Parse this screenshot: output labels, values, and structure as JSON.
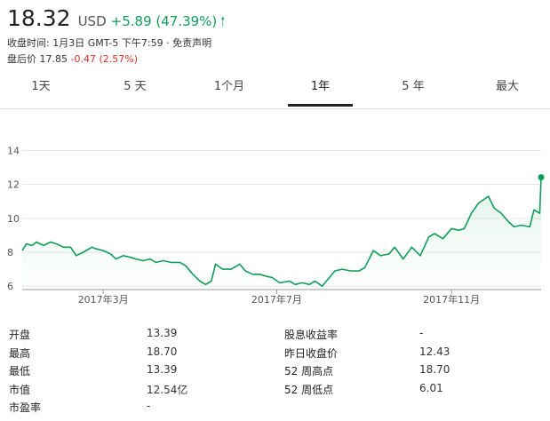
{
  "quote": {
    "price": "18.32",
    "currency": "USD",
    "change": "+5.89 (47.39%)",
    "up_arrow": "🡑",
    "close_info": "收盘时间: 1月3日 GMT-5 下午7:59 · 免责声明",
    "after_hours_prefix": "盘后价 17.85",
    "after_hours_change": "-0.47 (2.57%)",
    "after_hours_color": "#d93025",
    "up_color": "#0f9d58"
  },
  "tabs": [
    "1天",
    "5 天",
    "1个月",
    "1年",
    "5 年",
    "最大"
  ],
  "active_tab": "1年",
  "chart_data": {
    "type": "area",
    "color": "#0f9d58",
    "ylim": [
      5.8,
      14.6
    ],
    "yticks": [
      "14",
      "12",
      "10",
      "8",
      "6"
    ],
    "xticks": [
      "2017年3月",
      "2017年7月",
      "2017年11月"
    ],
    "x_range": [
      "2017-01-03",
      "2018-01-03"
    ],
    "series": [
      {
        "x": [
          "2017-01-03",
          "2017-01-06",
          "2017-01-10",
          "2017-01-13",
          "2017-01-18",
          "2017-01-23",
          "2017-01-27",
          "2017-02-01",
          "2017-02-06",
          "2017-02-10",
          "2017-02-15",
          "2017-02-21",
          "2017-02-24",
          "2017-03-01",
          "2017-03-06",
          "2017-03-10",
          "2017-03-15",
          "2017-03-20",
          "2017-03-24",
          "2017-03-29",
          "2017-04-03",
          "2017-04-07",
          "2017-04-12",
          "2017-04-18",
          "2017-04-24",
          "2017-04-28",
          "2017-05-03",
          "2017-05-08",
          "2017-05-12",
          "2017-05-16",
          "2017-05-19",
          "2017-05-24",
          "2017-05-30",
          "2017-06-05",
          "2017-06-09",
          "2017-06-14",
          "2017-06-19",
          "2017-06-23",
          "2017-06-28",
          "2017-07-03",
          "2017-07-10",
          "2017-07-14",
          "2017-07-19",
          "2017-07-24",
          "2017-07-28",
          "2017-08-02",
          "2017-08-07",
          "2017-08-11",
          "2017-08-16",
          "2017-08-22",
          "2017-08-28",
          "2017-09-01",
          "2017-09-07",
          "2017-09-12",
          "2017-09-18",
          "2017-09-22",
          "2017-09-28",
          "2017-10-04",
          "2017-10-10",
          "2017-10-16",
          "2017-10-20",
          "2017-10-26",
          "2017-11-01",
          "2017-11-06",
          "2017-11-10",
          "2017-11-15",
          "2017-11-20",
          "2017-11-27",
          "2017-12-01",
          "2017-12-06",
          "2017-12-11",
          "2017-12-15",
          "2017-12-20",
          "2017-12-26",
          "2017-12-29",
          "2018-01-02",
          "2018-01-03"
        ],
        "y": [
          8.1,
          8.5,
          8.4,
          8.6,
          8.4,
          8.6,
          8.5,
          8.3,
          8.3,
          7.8,
          8.0,
          8.3,
          8.2,
          8.1,
          7.9,
          7.6,
          7.8,
          7.7,
          7.6,
          7.5,
          7.6,
          7.4,
          7.5,
          7.4,
          7.4,
          7.2,
          6.7,
          6.3,
          6.1,
          6.3,
          7.3,
          7.0,
          7.0,
          7.3,
          6.9,
          6.7,
          6.7,
          6.6,
          6.5,
          6.2,
          6.3,
          6.1,
          6.2,
          6.1,
          6.3,
          6.0,
          6.5,
          6.9,
          7.0,
          6.9,
          6.9,
          7.1,
          8.1,
          7.8,
          7.9,
          8.3,
          7.6,
          8.3,
          7.8,
          8.9,
          9.1,
          8.8,
          9.4,
          9.3,
          9.4,
          10.3,
          10.9,
          11.3,
          10.6,
          10.3,
          9.8,
          9.5,
          9.6,
          9.5,
          10.5,
          10.3,
          12.42
        ]
      }
    ],
    "last_point": "12.42"
  },
  "stats": {
    "col1": [
      {
        "label": "开盘",
        "value": "13.39"
      },
      {
        "label": "最高",
        "value": "18.70"
      },
      {
        "label": "最低",
        "value": "13.39"
      },
      {
        "label": "市值",
        "value": "12.54亿"
      },
      {
        "label": "市盈率",
        "value": "-"
      }
    ],
    "col2": [
      {
        "label": "股息收益率",
        "value": "-"
      },
      {
        "label": "昨日收盘价",
        "value": "12.43"
      },
      {
        "label": "52 周高点",
        "value": "18.70"
      },
      {
        "label": "52 周低点",
        "value": "6.01"
      }
    ]
  }
}
